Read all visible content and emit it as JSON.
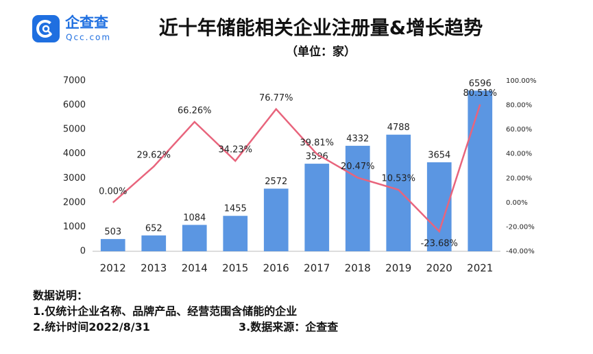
{
  "logo": {
    "name": "企查查",
    "domain": "Qcc.com"
  },
  "chart_data": {
    "type": "bar_line",
    "title": "近十年储能相关企业注册量&增长趋势",
    "subtitle": "（单位：家）",
    "categories": [
      "2012",
      "2013",
      "2014",
      "2015",
      "2016",
      "2017",
      "2018",
      "2019",
      "2020",
      "2021"
    ],
    "series": [
      {
        "type": "bar",
        "color": "#5b96e2",
        "values": [
          503,
          652,
          1084,
          1455,
          2572,
          3596,
          4332,
          4788,
          3654,
          6596
        ]
      },
      {
        "type": "line",
        "axis": "y2",
        "color": "#e8647c",
        "values": [
          0,
          29.62,
          66.26,
          34.23,
          76.77,
          39.81,
          20.47,
          10.53,
          -23.68,
          80.51
        ],
        "value_labels": [
          "0.00%",
          "29.62%",
          "66.26%",
          "34.23%",
          "76.77%",
          "39.81%",
          "20.47%",
          "10.53%",
          "-23.68%",
          "80.51%"
        ]
      }
    ],
    "ylim": [
      0,
      7000
    ],
    "yticks": [
      0,
      1000,
      2000,
      3000,
      4000,
      5000,
      6000,
      7000
    ],
    "y2lim": [
      -40,
      100
    ],
    "y2ticks": [
      {
        "value": -40,
        "label": "-40.00%"
      },
      {
        "value": -20,
        "label": "-20.00%"
      },
      {
        "value": 0,
        "label": "0.00%"
      },
      {
        "value": 20,
        "label": "20.00%"
      },
      {
        "value": 40,
        "label": "40.00%"
      },
      {
        "value": 60,
        "label": "60.00%"
      },
      {
        "value": 80,
        "label": "80.00%"
      },
      {
        "value": 100,
        "label": "100.00%"
      }
    ],
    "grid": false
  },
  "notes": {
    "heading": "数据说明：",
    "item1": "1.仅统计企业名称、品牌产品、经营范围含储能的企业",
    "item2": "2.统计时间2022/8/31",
    "item3": "3.数据来源：企查查"
  }
}
